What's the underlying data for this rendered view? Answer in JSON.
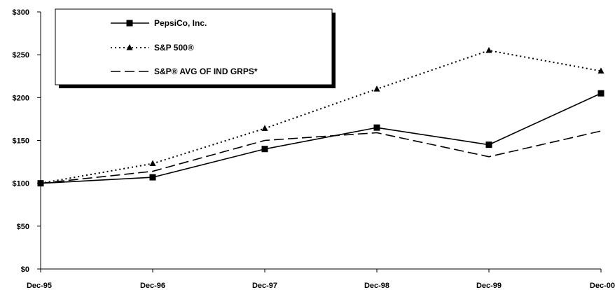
{
  "chart_data": {
    "type": "line",
    "categories": [
      "Dec-95",
      "Dec-96",
      "Dec-97",
      "Dec-98",
      "Dec-99",
      "Dec-00"
    ],
    "ylim": [
      0,
      300
    ],
    "yticks": [
      "$0",
      "$50",
      "$100",
      "$150",
      "$200",
      "$250",
      "$300"
    ],
    "ytick_values": [
      0,
      50,
      100,
      150,
      200,
      250,
      300
    ],
    "legend_position": "top-left",
    "grid": false,
    "series": [
      {
        "name": "PepsiCo, Inc.",
        "values": [
          100,
          107,
          140,
          165,
          145,
          205
        ],
        "line_style": "solid",
        "marker": "square"
      },
      {
        "name": "S&P 500®",
        "values": [
          100,
          123,
          164,
          210,
          255,
          231
        ],
        "line_style": "dotted",
        "marker": "triangle"
      },
      {
        "name": "S&P® AVG OF IND GRPS*",
        "values": [
          100,
          114,
          150,
          159,
          131,
          161
        ],
        "line_style": "dashed",
        "marker": "none"
      }
    ]
  }
}
